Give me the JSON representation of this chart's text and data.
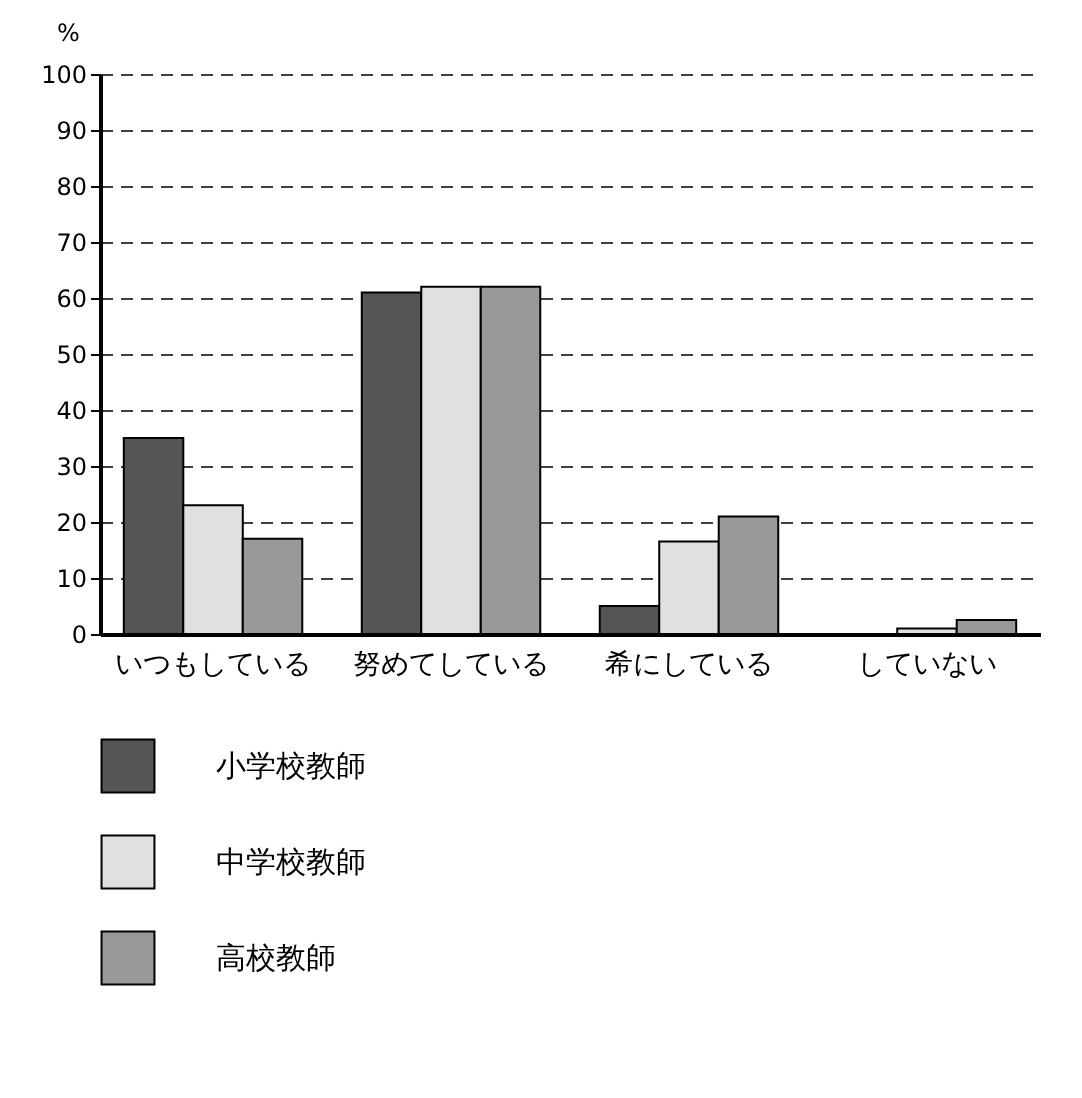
{
  "chart_data": {
    "type": "bar",
    "ylabel": "%",
    "categories": [
      "いつもしている",
      "努めてしている",
      "希にしている",
      "していない"
    ],
    "series": [
      {
        "name": "小学校教師",
        "color": "#555555",
        "values": [
          35,
          61,
          5,
          null
        ]
      },
      {
        "name": "中学校教師",
        "color": "#e0e0e0",
        "values": [
          23,
          62,
          16.5,
          1
        ]
      },
      {
        "name": "高校教師",
        "color": "#999999",
        "values": [
          17,
          62,
          21,
          2.5
        ]
      }
    ],
    "ylim": [
      0,
      100
    ],
    "yticks": [
      0,
      10,
      20,
      30,
      40,
      50,
      60,
      70,
      80,
      90,
      100
    ],
    "grid": "y",
    "legend": "bottom"
  }
}
